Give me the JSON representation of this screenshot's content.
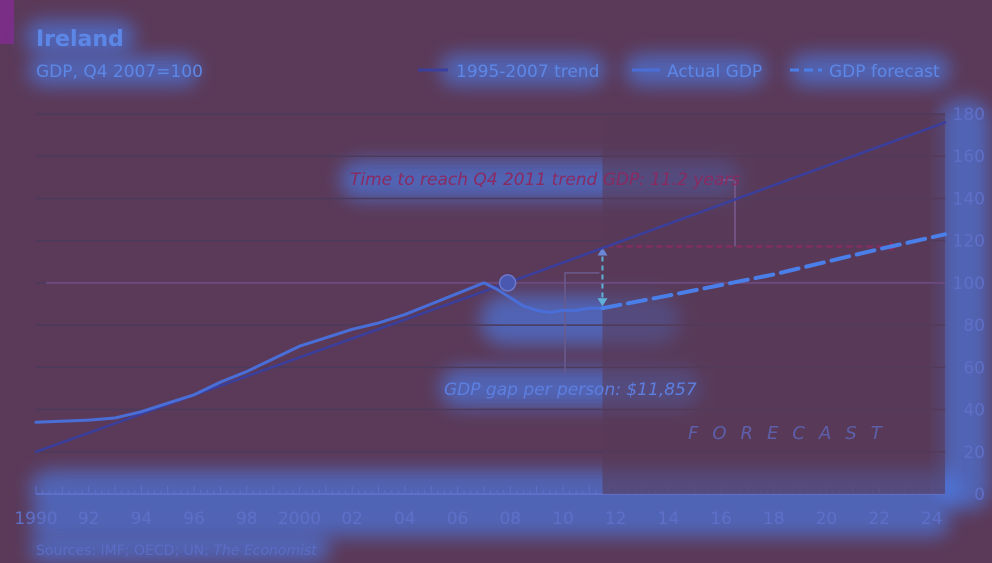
{
  "chart_data": {
    "type": "line",
    "title": "Ireland",
    "subtitle": "GDP, Q4 2007=100",
    "ylim": [
      0,
      180
    ],
    "yticks": [
      0,
      20,
      40,
      60,
      80,
      100,
      120,
      140,
      160,
      180
    ],
    "xlim": [
      1990,
      2024.5
    ],
    "xtick_values": [
      1990,
      1992,
      1994,
      1996,
      1998,
      2000,
      2002,
      2004,
      2006,
      2008,
      2010,
      2012,
      2014,
      2016,
      2018,
      2020,
      2022,
      2024
    ],
    "xtick_labels": [
      "1990",
      "92",
      "94",
      "96",
      "98",
      "2000",
      "02",
      "04",
      "06",
      "08",
      "10",
      "12",
      "14",
      "16",
      "18",
      "20",
      "22",
      "24"
    ],
    "grid": true,
    "legend_position": "top-right",
    "series": [
      {
        "name": "1995-2007 trend",
        "color": "#3a3f9e",
        "style": "solid",
        "x": [
          1990,
          2007.9,
          2024.5
        ],
        "y": [
          20,
          100,
          176
        ]
      },
      {
        "name": "Actual GDP",
        "color": "#4a6ed8",
        "style": "solid",
        "x": [
          1990,
          1992,
          1993,
          1994,
          1995,
          1996,
          1997,
          1998,
          1999,
          2000,
          2001,
          2002,
          2003,
          2004,
          2005,
          2006,
          2007,
          2007.5,
          2008,
          2008.5,
          2009,
          2009.5,
          2010,
          2010.5,
          2011,
          2011.5
        ],
        "y": [
          34,
          35,
          36,
          39,
          43,
          47,
          53,
          58,
          64,
          70,
          74,
          78,
          81,
          85,
          90,
          95,
          100,
          97,
          93,
          89,
          87,
          86,
          87,
          87,
          88,
          88
        ]
      },
      {
        "name": "GDP forecast",
        "color": "#4a7ee8",
        "style": "dashed",
        "x": [
          2011.5,
          2014,
          2016,
          2018,
          2020,
          2022,
          2024.5
        ],
        "y": [
          88,
          94,
          99,
          104,
          110,
          116,
          123
        ]
      }
    ],
    "marker": {
      "x": 2007.9,
      "y": 100
    },
    "forecast_start": 2011.5,
    "annotations": {
      "trend_time": "Time to reach Q4 2011 trend GDP: 11.2 years",
      "gdp_gap": "GDP gap per person: $11,857",
      "forecast": "FORECAST"
    },
    "colors": {
      "annotation_red": "#8a2a60",
      "grid": "#4a3a5c",
      "reference_line": "#6a4a7e"
    },
    "source": {
      "prefix": "Sources: IMF; OECD; UN; ",
      "italic": "The Economist"
    }
  }
}
